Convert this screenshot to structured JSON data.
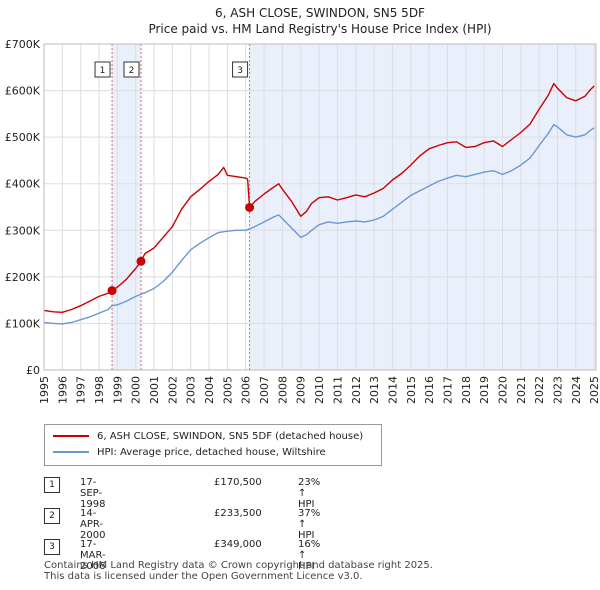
{
  "chart_data": {
    "type": "line",
    "title": "6, ASH CLOSE, SWINDON, SN5 5DF",
    "subtitle": "Price paid vs. HM Land Registry's House Price Index (HPI)",
    "xlabel": "",
    "ylabel": "",
    "xlim": [
      1995,
      2025.1
    ],
    "ylim": [
      0,
      700000
    ],
    "x_ticks": [
      1995,
      1996,
      1997,
      1998,
      1999,
      2000,
      2001,
      2002,
      2003,
      2004,
      2005,
      2006,
      2007,
      2008,
      2009,
      2010,
      2011,
      2012,
      2013,
      2014,
      2015,
      2016,
      2017,
      2018,
      2019,
      2020,
      2021,
      2022,
      2023,
      2024,
      2025
    ],
    "y_ticks": [
      {
        "value": 0,
        "label": "£0"
      },
      {
        "value": 100000,
        "label": "£100K"
      },
      {
        "value": 200000,
        "label": "£200K"
      },
      {
        "value": 300000,
        "label": "£300K"
      },
      {
        "value": 400000,
        "label": "£400K"
      },
      {
        "value": 500000,
        "label": "£500K"
      },
      {
        "value": 600000,
        "label": "£600K"
      },
      {
        "value": 700000,
        "label": "£700K"
      }
    ],
    "grid": true,
    "shaded_periods": [
      [
        1998.71,
        2000.29
      ],
      [
        2006.21,
        2025.1
      ]
    ],
    "series": [
      {
        "name": "6, ASH CLOSE, SWINDON, SN5 5DF (detached house)",
        "color": "#cc0000",
        "x": [
          1995,
          1995.5,
          1996,
          1996.5,
          1997,
          1997.5,
          1998,
          1998.5,
          1998.71,
          1999,
          1999.5,
          2000,
          2000.29,
          2000.5,
          2001,
          2001.5,
          2002,
          2002.5,
          2003,
          2003.5,
          2004,
          2004.5,
          2004.8,
          2005,
          2005.5,
          2006,
          2006.1,
          2006.21,
          2006.5,
          2007,
          2007.5,
          2007.8,
          2008,
          2008.5,
          2009,
          2009.3,
          2009.6,
          2010,
          2010.5,
          2011,
          2011.5,
          2012,
          2012.5,
          2013,
          2013.5,
          2014,
          2014.5,
          2015,
          2015.5,
          2016,
          2016.5,
          2017,
          2017.5,
          2018,
          2018.5,
          2019,
          2019.5,
          2020,
          2020.5,
          2021,
          2021.5,
          2022,
          2022.5,
          2022.8,
          2023,
          2023.5,
          2024,
          2024.5,
          2024.8,
          2025
        ],
        "y": [
          128000,
          125000,
          124000,
          130000,
          138000,
          148000,
          158000,
          165000,
          170500,
          178000,
          195000,
          218000,
          233500,
          250000,
          262000,
          285000,
          308000,
          345000,
          372000,
          388000,
          405000,
          420000,
          435000,
          418000,
          415000,
          412000,
          410000,
          349000,
          362000,
          378000,
          392000,
          400000,
          388000,
          362000,
          330000,
          340000,
          358000,
          370000,
          372000,
          365000,
          370000,
          376000,
          372000,
          380000,
          390000,
          408000,
          422000,
          440000,
          460000,
          475000,
          482000,
          488000,
          490000,
          478000,
          480000,
          488000,
          492000,
          480000,
          495000,
          510000,
          528000,
          560000,
          590000,
          615000,
          605000,
          585000,
          578000,
          588000,
          602000,
          610000
        ]
      },
      {
        "name": "HPI: Average price, detached house, Wiltshire",
        "color": "#6a98d3",
        "x": [
          1995,
          1995.5,
          1996,
          1996.5,
          1997,
          1997.5,
          1998,
          1998.5,
          1998.71,
          1999,
          1999.5,
          2000,
          2000.5,
          2001,
          2001.5,
          2002,
          2002.5,
          2003,
          2003.5,
          2004,
          2004.5,
          2005,
          2005.5,
          2006,
          2006.5,
          2007,
          2007.5,
          2007.8,
          2008,
          2008.5,
          2009,
          2009.3,
          2009.6,
          2010,
          2010.5,
          2011,
          2011.5,
          2012,
          2012.5,
          2013,
          2013.5,
          2014,
          2014.5,
          2015,
          2015.5,
          2016,
          2016.5,
          2017,
          2017.5,
          2018,
          2018.5,
          2019,
          2019.5,
          2020,
          2020.5,
          2021,
          2021.5,
          2022,
          2022.5,
          2022.8,
          2023,
          2023.5,
          2024,
          2024.5,
          2024.8,
          2025
        ],
        "y": [
          102000,
          100000,
          99000,
          102000,
          108000,
          114000,
          122000,
          130000,
          138000,
          140000,
          148000,
          158000,
          166000,
          175000,
          190000,
          210000,
          235000,
          258000,
          272000,
          284000,
          295000,
          298000,
          300000,
          300000,
          308000,
          318000,
          328000,
          333000,
          325000,
          305000,
          285000,
          290000,
          300000,
          312000,
          318000,
          315000,
          318000,
          320000,
          318000,
          322000,
          330000,
          345000,
          360000,
          375000,
          385000,
          395000,
          405000,
          412000,
          418000,
          415000,
          420000,
          425000,
          428000,
          420000,
          428000,
          440000,
          455000,
          482000,
          508000,
          527000,
          522000,
          505000,
          500000,
          505000,
          515000,
          520000
        ]
      }
    ],
    "transactions": [
      {
        "num": "1",
        "x": 1998.71,
        "price": 170500,
        "date": "17-SEP-1998",
        "price_label": "£170,500",
        "hpi": "23% ↑ HPI"
      },
      {
        "num": "2",
        "x": 2000.29,
        "price": 233500,
        "date": "14-APR-2000",
        "price_label": "£233,500",
        "hpi": "37% ↑ HPI"
      },
      {
        "num": "3",
        "x": 2006.21,
        "price": 349000,
        "date": "17-MAR-2006",
        "price_label": "£349,000",
        "hpi": "16% ↑ HPI"
      }
    ]
  },
  "legend": {
    "property_label": "6, ASH CLOSE, SWINDON, SN5 5DF (detached house)",
    "hpi_label": "HPI: Average price, detached house, Wiltshire"
  },
  "table": [
    {
      "num": "1",
      "date": "17-SEP-1998",
      "price": "£170,500",
      "hpi": "23% ↑ HPI"
    },
    {
      "num": "2",
      "date": "14-APR-2000",
      "price": "£233,500",
      "hpi": "37% ↑ HPI"
    },
    {
      "num": "3",
      "date": "17-MAR-2006",
      "price": "£349,000",
      "hpi": "16% ↑ HPI"
    }
  ],
  "footer": {
    "line1": "Contains HM Land Registry data © Crown copyright and database right 2025.",
    "line2": "This data is licensed under the Open Government Licence v3.0."
  }
}
